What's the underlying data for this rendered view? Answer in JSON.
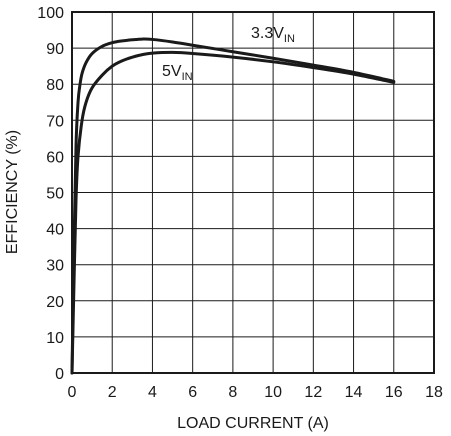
{
  "chart_data": {
    "type": "line",
    "xlabel": "LOAD CURRENT (A)",
    "ylabel": "EFFICIENCY (%)",
    "xlim": [
      0,
      18
    ],
    "ylim": [
      0,
      100
    ],
    "x_ticks": [
      0,
      2,
      4,
      6,
      8,
      10,
      12,
      14,
      16,
      18
    ],
    "y_ticks": [
      0,
      10,
      20,
      30,
      40,
      50,
      60,
      70,
      80,
      90,
      100
    ],
    "grid": true,
    "series": [
      {
        "name": "3.3V",
        "name_main": "3.3V",
        "name_sub": "IN",
        "color": "#1a1a1a",
        "x": [
          0,
          0.1,
          0.2,
          0.3,
          0.4,
          0.5,
          0.7,
          1,
          1.5,
          2,
          2.5,
          3,
          3.5,
          4,
          5,
          6,
          8,
          10,
          12,
          14,
          16
        ],
        "y": [
          0,
          35,
          63,
          75,
          80,
          83,
          86,
          88.5,
          90.5,
          91.5,
          92,
          92.3,
          92.5,
          92.4,
          91.7,
          90.8,
          89,
          87.2,
          85.3,
          83.3,
          80.8
        ]
      },
      {
        "name": "5V",
        "name_main": "5V",
        "name_sub": "IN",
        "color": "#1a1a1a",
        "x": [
          0,
          0.1,
          0.2,
          0.3,
          0.5,
          0.7,
          1,
          1.5,
          2,
          2.5,
          3,
          3.5,
          4,
          5,
          6,
          8,
          10,
          12,
          14,
          16
        ],
        "y": [
          0,
          25,
          48,
          60,
          70,
          75,
          79,
          82.5,
          85,
          86.5,
          87.5,
          88.2,
          88.6,
          88.8,
          88.5,
          87.5,
          86.2,
          84.6,
          82.8,
          80.5
        ]
      }
    ]
  }
}
